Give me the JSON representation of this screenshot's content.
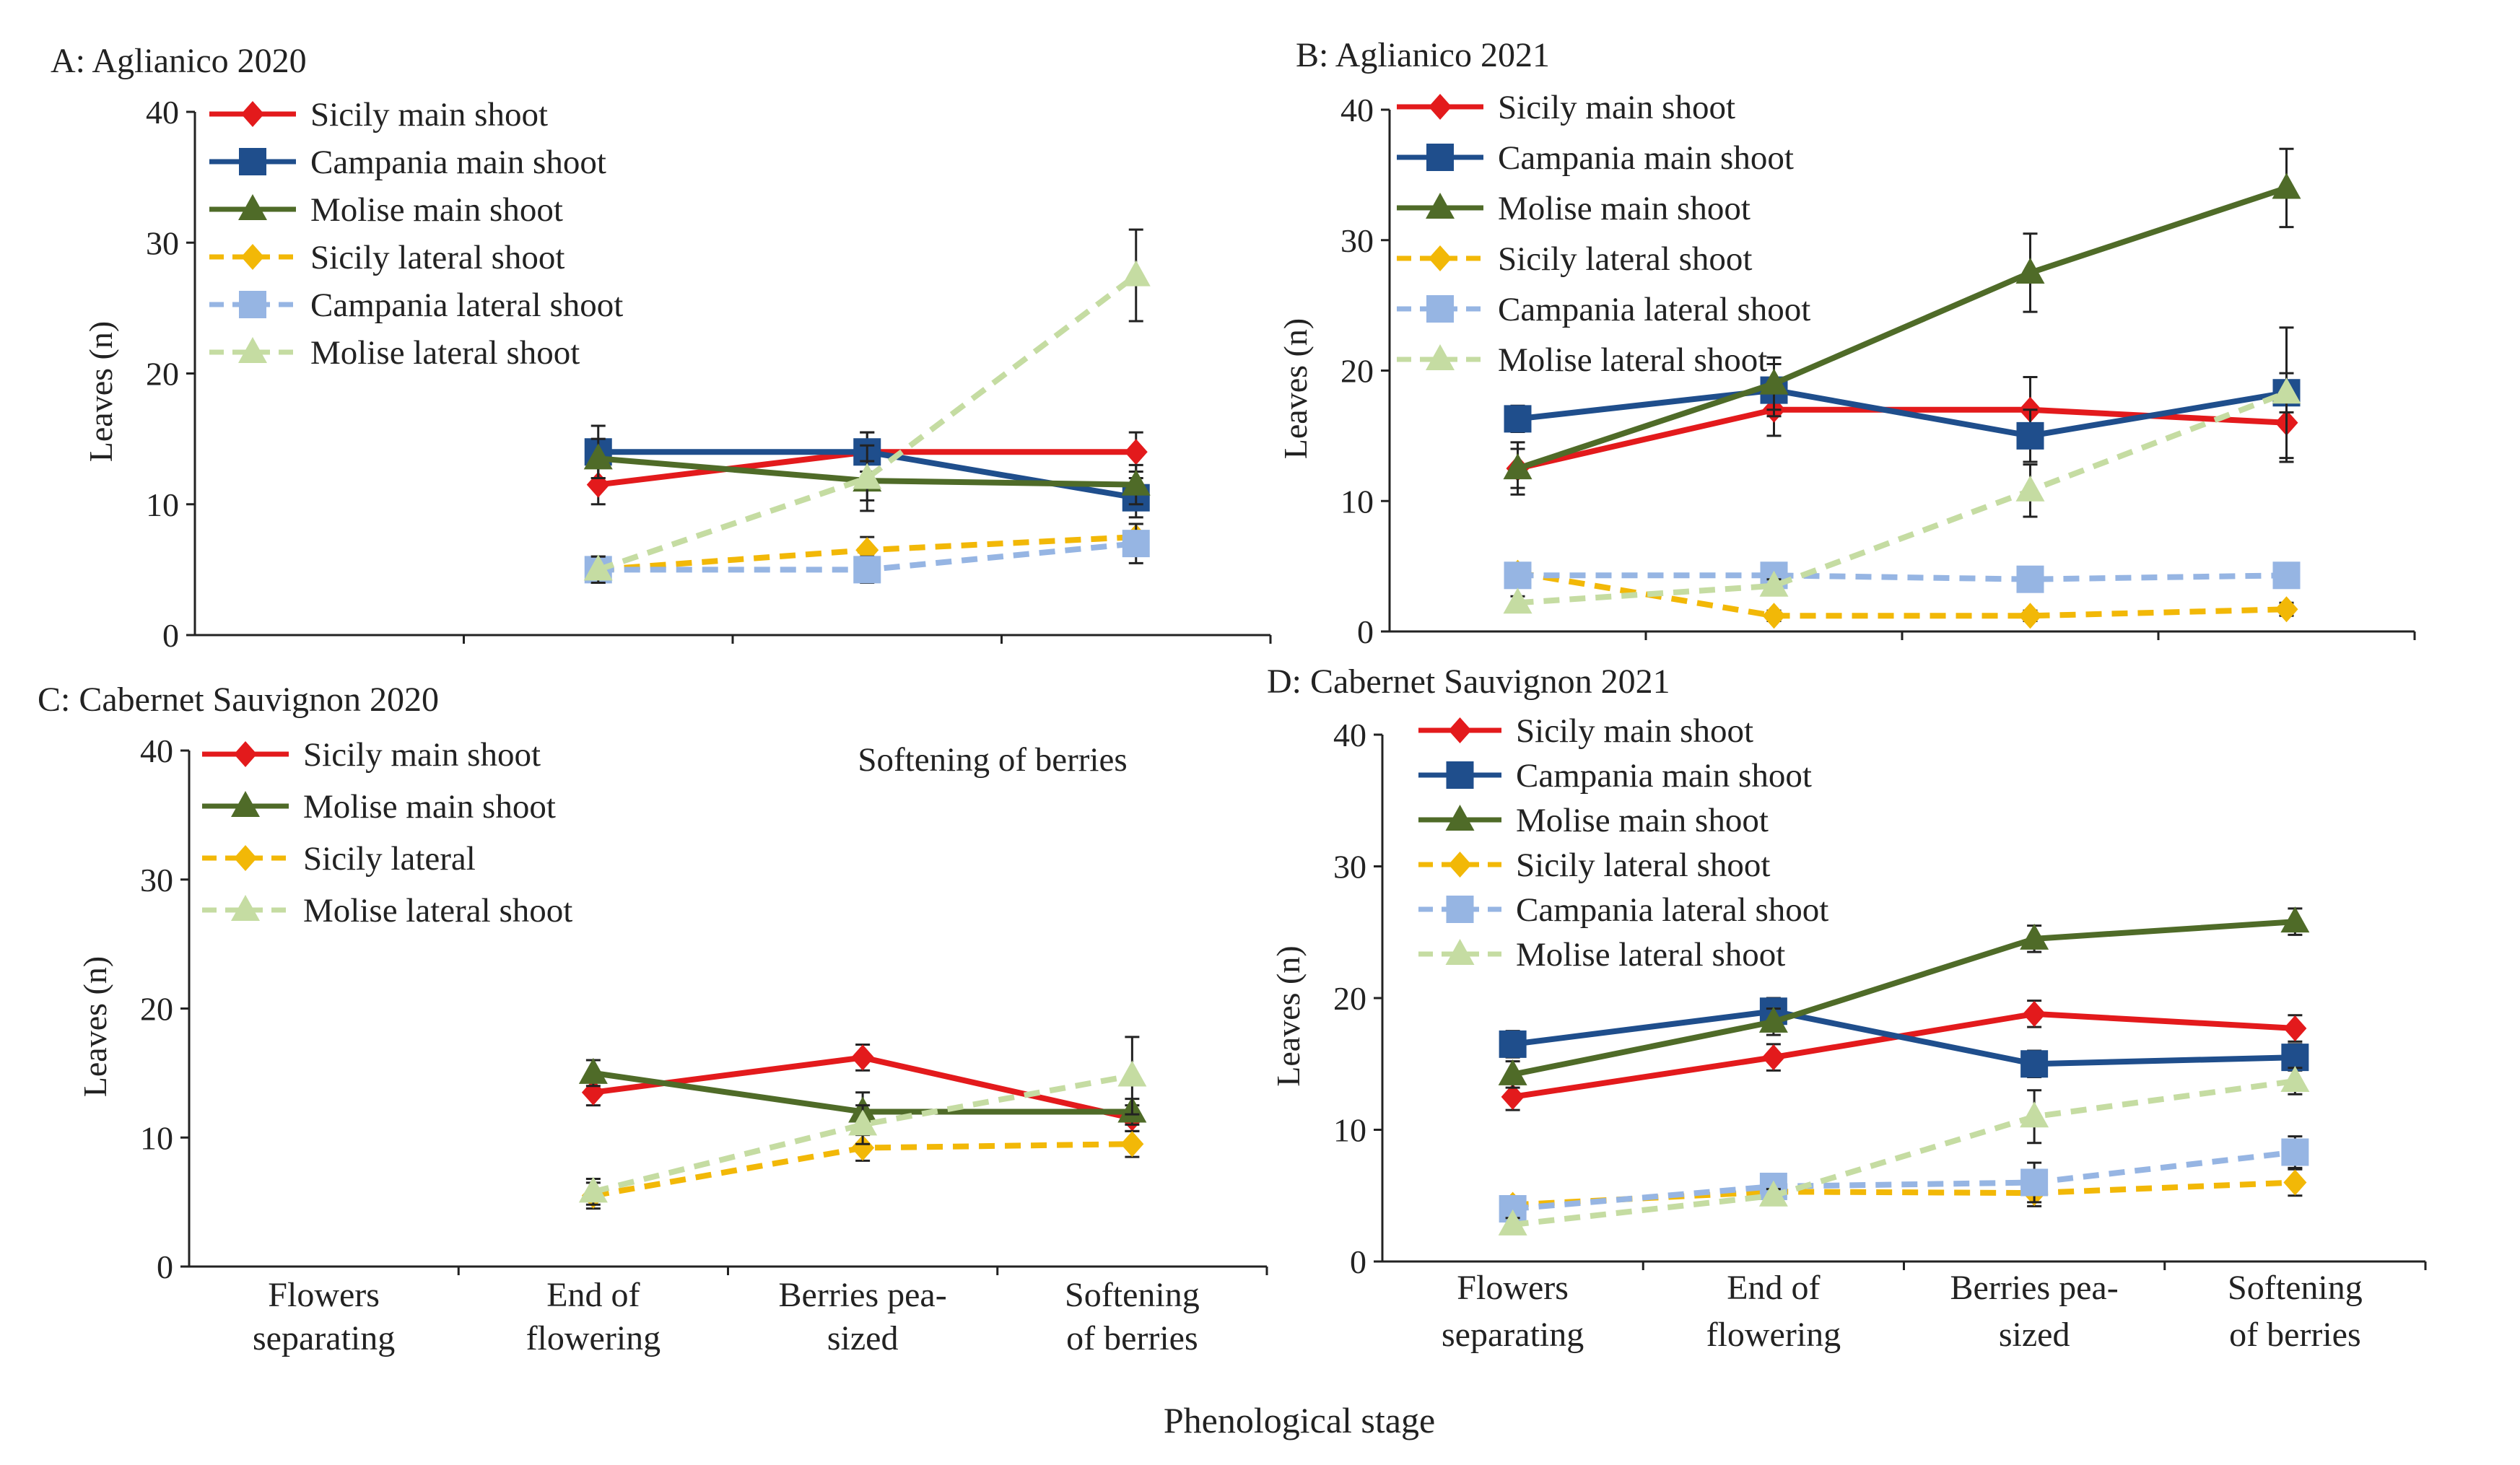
{
  "figure": {
    "xlabel": "Phenological stage",
    "stage_labels": [
      [
        "Flowers",
        "separating"
      ],
      [
        "End of",
        "flowering"
      ],
      [
        "Berries pea-",
        "sized"
      ],
      [
        "Softening",
        "of berries"
      ]
    ]
  },
  "colors": {
    "sicily": "#e31a1c",
    "campania": "#1f4e8c",
    "molise": "#4f6b28",
    "sicily_lateral": "#f2b807",
    "campania_lateral": "#96b5e3",
    "molise_lateral": "#c5dca2",
    "axis": "#222222"
  },
  "chart_data": [
    {
      "id": "A",
      "type": "line",
      "title": "A: Aglianico 2020",
      "ylabel": "Leaves (n)",
      "ylim": [
        0,
        40
      ],
      "yticks": [
        0,
        10,
        20,
        30,
        40
      ],
      "categories": [
        "Flowers separating",
        "End of flowering",
        "Berries pea-sized",
        "Softening of berries"
      ],
      "annotations": [],
      "series": [
        {
          "name": "Sicily main shoot",
          "color": "#e31a1c",
          "dashed": false,
          "marker": "diamond",
          "values": [
            null,
            11.5,
            14,
            14
          ],
          "errors": [
            null,
            1.5,
            1.5,
            1.5
          ]
        },
        {
          "name": "Campania main shoot",
          "color": "#1f4e8c",
          "dashed": false,
          "marker": "square",
          "values": [
            null,
            14,
            14,
            10.5
          ],
          "errors": [
            null,
            2,
            1.5,
            1.5
          ]
        },
        {
          "name": "Molise main shoot",
          "color": "#4f6b28",
          "dashed": false,
          "marker": "triangle",
          "values": [
            null,
            13.5,
            11.8,
            11.5
          ],
          "errors": [
            null,
            1.5,
            1.5,
            1.5
          ]
        },
        {
          "name": "Sicily lateral shoot",
          "color": "#f2b807",
          "dashed": true,
          "marker": "diamond",
          "values": [
            null,
            5,
            6.5,
            7.5
          ],
          "errors": [
            null,
            1,
            1,
            1
          ]
        },
        {
          "name": "Campania lateral shoot",
          "color": "#96b5e3",
          "dashed": true,
          "marker": "square",
          "values": [
            null,
            5,
            5,
            7
          ],
          "errors": [
            null,
            1,
            1,
            1.5
          ]
        },
        {
          "name": "Molise lateral shoot",
          "color": "#c5dca2",
          "dashed": true,
          "marker": "triangle",
          "values": [
            null,
            5,
            12,
            27.5
          ],
          "errors": [
            null,
            1,
            2.5,
            3.5
          ]
        }
      ]
    },
    {
      "id": "B",
      "type": "line",
      "title": "B: Aglianico 2021",
      "ylabel": "Leaves (n)",
      "ylim": [
        0,
        40
      ],
      "yticks": [
        0,
        10,
        20,
        30,
        40
      ],
      "categories": [
        "Flowers separating",
        "End of flowering",
        "Berries pea-sized",
        "Softening of berries"
      ],
      "annotations": [],
      "series": [
        {
          "name": "Sicily main shoot",
          "color": "#e31a1c",
          "dashed": false,
          "marker": "diamond",
          "values": [
            12.5,
            17,
            17,
            16
          ],
          "errors": [
            1.5,
            2,
            2.5,
            3
          ]
        },
        {
          "name": "Campania main shoot",
          "color": "#1f4e8c",
          "dashed": false,
          "marker": "square",
          "values": [
            16.3,
            18.5,
            15,
            18.3
          ],
          "errors": [
            1,
            2,
            2,
            5
          ]
        },
        {
          "name": "Molise main shoot",
          "color": "#4f6b28",
          "dashed": false,
          "marker": "triangle",
          "values": [
            12.5,
            19,
            27.5,
            34
          ],
          "errors": [
            2,
            2,
            3,
            3
          ]
        },
        {
          "name": "Sicily lateral shoot",
          "color": "#f2b807",
          "dashed": true,
          "marker": "diamond",
          "values": [
            4.5,
            1.2,
            1.2,
            1.7
          ],
          "errors": [
            0.5,
            0.4,
            0.4,
            0.5
          ]
        },
        {
          "name": "Campania lateral shoot",
          "color": "#96b5e3",
          "dashed": true,
          "marker": "square",
          "values": [
            4.3,
            4.3,
            4,
            4.3
          ],
          "errors": [
            0.5,
            0.5,
            0.5,
            0.5
          ]
        },
        {
          "name": "Molise lateral shoot",
          "color": "#c5dca2",
          "dashed": true,
          "marker": "triangle",
          "values": [
            2.2,
            3.5,
            10.8,
            18.3
          ],
          "errors": [
            0.5,
            0.5,
            2,
            1.5
          ]
        }
      ]
    },
    {
      "id": "C",
      "type": "line",
      "title": "C: Cabernet Sauvignon 2020",
      "ylabel": "Leaves (n)",
      "ylim": [
        0,
        40
      ],
      "yticks": [
        0,
        10,
        20,
        30,
        40
      ],
      "categories": [
        "Flowers separating",
        "End of flowering",
        "Berries pea-sized",
        "Softening of berries"
      ],
      "annotations": [
        "Softening of berries"
      ],
      "series": [
        {
          "name": "Sicily main shoot",
          "color": "#e31a1c",
          "dashed": false,
          "marker": "diamond",
          "values": [
            null,
            13.5,
            16.2,
            11.5
          ],
          "errors": [
            null,
            1,
            1,
            1
          ]
        },
        {
          "name": "Molise main shoot",
          "color": "#4f6b28",
          "dashed": false,
          "marker": "triangle",
          "values": [
            null,
            15,
            12,
            12
          ],
          "errors": [
            null,
            1,
            1.5,
            1
          ]
        },
        {
          "name": "Sicily lateral",
          "color": "#f2b807",
          "dashed": true,
          "marker": "diamond",
          "values": [
            null,
            5.5,
            9.2,
            9.5
          ],
          "errors": [
            null,
            1,
            1,
            1
          ]
        },
        {
          "name": "Molise lateral  shoot",
          "color": "#c5dca2",
          "dashed": true,
          "marker": "triangle",
          "values": [
            null,
            5.8,
            11,
            14.8
          ],
          "errors": [
            null,
            1,
            1.5,
            3
          ]
        }
      ]
    },
    {
      "id": "D",
      "type": "line",
      "title": "D: Cabernet Sauvignon 2021",
      "ylabel": "Leaves (n)",
      "ylim": [
        0,
        40
      ],
      "yticks": [
        0,
        10,
        20,
        30,
        40
      ],
      "categories": [
        "Flowers separating",
        "End of flowering",
        "Berries pea-sized",
        "Softening of berries"
      ],
      "annotations": [],
      "series": [
        {
          "name": "Sicily main shoot",
          "color": "#e31a1c",
          "dashed": false,
          "marker": "diamond",
          "values": [
            12.5,
            15.5,
            18.8,
            17.7
          ],
          "errors": [
            1,
            1,
            1,
            1
          ]
        },
        {
          "name": "Campania main shoot",
          "color": "#1f4e8c",
          "dashed": false,
          "marker": "square",
          "values": [
            16.5,
            19,
            15,
            15.5
          ],
          "errors": [
            1,
            1,
            1,
            1
          ]
        },
        {
          "name": "Molise main shoot",
          "color": "#4f6b28",
          "dashed": false,
          "marker": "triangle",
          "values": [
            14.2,
            18.2,
            24.5,
            25.8
          ],
          "errors": [
            1,
            1,
            1,
            1
          ]
        },
        {
          "name": "Sicily lateral shoot",
          "color": "#f2b807",
          "dashed": true,
          "marker": "diamond",
          "values": [
            4.3,
            5.3,
            5.2,
            6
          ],
          "errors": [
            0.5,
            0.8,
            1,
            1
          ]
        },
        {
          "name": "Campania lateral  shoot",
          "color": "#96b5e3",
          "dashed": true,
          "marker": "square",
          "values": [
            4,
            5.7,
            6,
            8.3
          ],
          "errors": [
            0.5,
            0.8,
            1.5,
            1.2
          ]
        },
        {
          "name": "Molise lateral  shoot",
          "color": "#c5dca2",
          "dashed": true,
          "marker": "triangle",
          "values": [
            2.8,
            5,
            11,
            13.7
          ],
          "errors": [
            0.5,
            0.5,
            2,
            1
          ]
        }
      ]
    }
  ]
}
